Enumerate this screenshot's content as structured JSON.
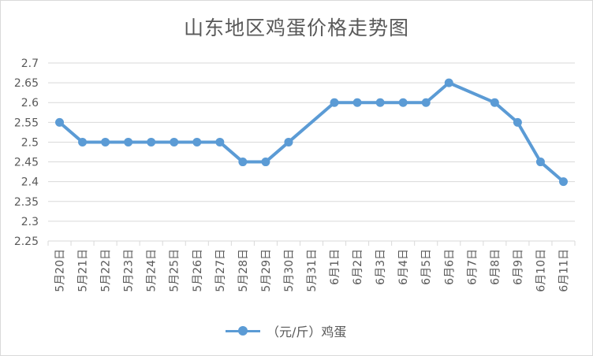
{
  "chart_data": {
    "type": "line",
    "title": "山东地区鸡蛋价格走势图",
    "categories": [
      "5月20日",
      "5月21日",
      "5月22日",
      "5月23日",
      "5月24日",
      "5月25日",
      "5月26日",
      "5月27日",
      "5月28日",
      "5月29日",
      "5月30日",
      "5月31日",
      "6月1日",
      "6月2日",
      "6月3日",
      "6月4日",
      "6月5日",
      "6月6日",
      "6月7日",
      "6月8日",
      "6月9日",
      "6月10日",
      "6月11日"
    ],
    "series": [
      {
        "name": "（元/斤）鸡蛋",
        "values": [
          2.55,
          2.5,
          2.5,
          2.5,
          2.5,
          2.5,
          2.5,
          2.5,
          2.45,
          2.45,
          2.5,
          null,
          2.6,
          2.6,
          2.6,
          2.6,
          2.6,
          2.65,
          null,
          2.6,
          2.55,
          2.45,
          2.4
        ]
      }
    ],
    "ylim": [
      2.25,
      2.7
    ],
    "yticks": [
      "2.7",
      "2.65",
      "2.6",
      "2.55",
      "2.5",
      "2.45",
      "2.4",
      "2.35",
      "2.3",
      "2.25"
    ],
    "grid": true,
    "legend_position": "bottom",
    "colors": {
      "line": "#5b9bd5",
      "grid": "#d9d9d9",
      "text": "#595959"
    }
  }
}
